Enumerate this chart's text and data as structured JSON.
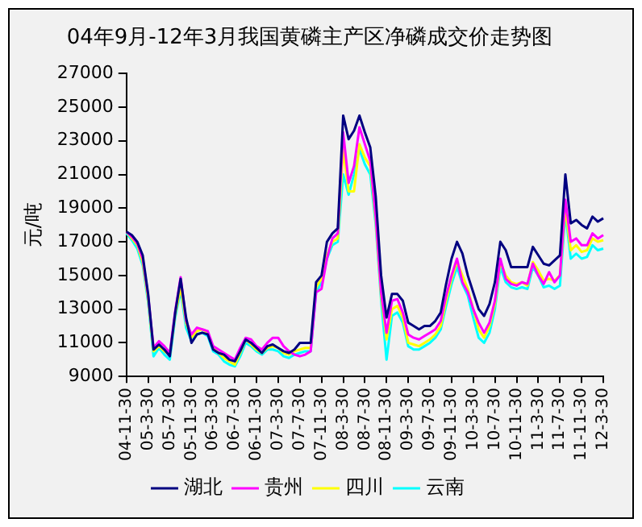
{
  "chart_data": {
    "type": "line",
    "title": "04年9月-12年3月我国黄磷主产区净磷成交价走势图",
    "ylabel": "元/吨",
    "categories": [
      "04-11-30",
      null,
      null,
      null,
      "05-3-30",
      null,
      null,
      null,
      "05-7-30",
      null,
      null,
      null,
      "05-11-30",
      null,
      null,
      null,
      "06-3-30",
      null,
      null,
      null,
      "06-7-30",
      null,
      null,
      null,
      "06-11-30",
      null,
      null,
      null,
      "07-3-30",
      null,
      null,
      null,
      "07-7-30",
      null,
      null,
      null,
      "07-11-30",
      null,
      null,
      null,
      "08-3-30",
      null,
      null,
      null,
      "08-7-30",
      null,
      null,
      null,
      "08-11-30",
      null,
      null,
      null,
      "09-3-30",
      null,
      null,
      null,
      "09-7-30",
      null,
      null,
      null,
      "09-11-30",
      null,
      null,
      null,
      "10-3-30",
      null,
      null,
      null,
      "10-7-30",
      null,
      null,
      null,
      "10-11-30",
      null,
      null,
      null,
      "11-3-30",
      null,
      null,
      null,
      "11-7-30",
      null,
      null,
      null,
      "11-11-30",
      null,
      null,
      null,
      "12-3-30"
    ],
    "series": [
      {
        "name": "湖北",
        "color": "#000080",
        "values": [
          17600,
          17400,
          17000,
          16200,
          13900,
          10600,
          10900,
          10600,
          10200,
          12800,
          14800,
          12500,
          11000,
          11500,
          11600,
          11500,
          10600,
          10400,
          10300,
          10000,
          9900,
          10500,
          11200,
          11000,
          10700,
          10400,
          10800,
          10900,
          10700,
          10500,
          10400,
          10600,
          11000,
          11000,
          11000,
          14600,
          15000,
          17000,
          17500,
          17800,
          24500,
          23100,
          23600,
          24500,
          23500,
          22600,
          19700,
          15000,
          12500,
          13900,
          13900,
          13500,
          12200,
          12000,
          11800,
          12000,
          12000,
          12300,
          12800,
          14500,
          16000,
          17000,
          16300,
          15000,
          14000,
          13000,
          12600,
          13300,
          14600,
          17000,
          16500,
          15500,
          15500,
          15500,
          15500,
          16700,
          16200,
          15700,
          15600,
          15900,
          16200,
          21000,
          18100,
          18300,
          18000,
          17800,
          18500,
          18200,
          18400
        ]
      },
      {
        "name": "贵州",
        "color": "#ff00ff",
        "values": [
          17600,
          17300,
          16900,
          16000,
          13800,
          10700,
          11100,
          10800,
          10400,
          12900,
          14900,
          12300,
          11500,
          11900,
          11800,
          11700,
          10800,
          10600,
          10400,
          10200,
          10000,
          10700,
          11300,
          11200,
          10800,
          10600,
          11000,
          11300,
          11300,
          10800,
          10500,
          10300,
          10200,
          10300,
          10500,
          14000,
          14200,
          16000,
          17200,
          17500,
          23500,
          20500,
          21500,
          23800,
          22800,
          21800,
          18500,
          14000,
          11600,
          13500,
          13600,
          12800,
          11500,
          11300,
          11200,
          11400,
          11600,
          11800,
          12300,
          13800,
          15000,
          16000,
          14600,
          14000,
          13000,
          12200,
          11600,
          12200,
          13500,
          16000,
          14800,
          14500,
          14400,
          14600,
          14500,
          15700,
          15000,
          14500,
          15200,
          14600,
          15000,
          19500,
          17000,
          17200,
          16800,
          16800,
          17500,
          17200,
          17400
        ]
      },
      {
        "name": "四川",
        "color": "#ffff00",
        "values": [
          17600,
          17200,
          16800,
          15800,
          13600,
          10500,
          10800,
          10500,
          10300,
          12700,
          14300,
          12200,
          11300,
          11700,
          11800,
          11600,
          10700,
          10400,
          10100,
          9900,
          9700,
          10400,
          11200,
          10900,
          10600,
          10400,
          10700,
          10800,
          10700,
          10400,
          10300,
          10500,
          10600,
          10700,
          10700,
          14300,
          14800,
          16200,
          17000,
          17200,
          22500,
          20000,
          20000,
          22800,
          22000,
          21500,
          18300,
          13800,
          11200,
          13000,
          13200,
          12500,
          11000,
          10900,
          10800,
          11000,
          11200,
          11500,
          12000,
          13500,
          14800,
          15800,
          15000,
          14200,
          13000,
          11800,
          11300,
          12000,
          13300,
          15800,
          15000,
          14600,
          14500,
          14600,
          14400,
          15800,
          15300,
          14700,
          14800,
          14700,
          15000,
          19000,
          16500,
          16800,
          16400,
          16500,
          17200,
          17000,
          17100
        ]
      },
      {
        "name": "云南",
        "color": "#00ffff",
        "values": [
          17500,
          17100,
          16600,
          15600,
          13400,
          10200,
          10700,
          10300,
          10000,
          12500,
          14100,
          11900,
          11100,
          11500,
          11600,
          11400,
          10500,
          10300,
          9900,
          9700,
          9600,
          10200,
          11000,
          10800,
          10500,
          10300,
          10600,
          10600,
          10500,
          10200,
          10100,
          10300,
          10400,
          10500,
          10500,
          14000,
          14600,
          16000,
          16800,
          17000,
          21000,
          19800,
          21000,
          22500,
          21600,
          21000,
          18000,
          13500,
          10000,
          12600,
          12800,
          12200,
          10800,
          10600,
          10600,
          10800,
          11000,
          11300,
          11800,
          13200,
          14500,
          15500,
          14500,
          13800,
          12500,
          11300,
          11000,
          11600,
          13000,
          15500,
          14600,
          14300,
          14200,
          14300,
          14200,
          15500,
          15000,
          14300,
          14400,
          14200,
          14400,
          18700,
          16000,
          16300,
          16000,
          16100,
          16800,
          16500,
          16600
        ]
      }
    ],
    "ylim": [
      9000,
      27000
    ],
    "yticks": [
      9000,
      11000,
      13000,
      15000,
      17000,
      19000,
      21000,
      23000,
      25000,
      27000
    ],
    "grid": false,
    "legend": "bottom",
    "marker": "none",
    "line_style": "solid"
  }
}
